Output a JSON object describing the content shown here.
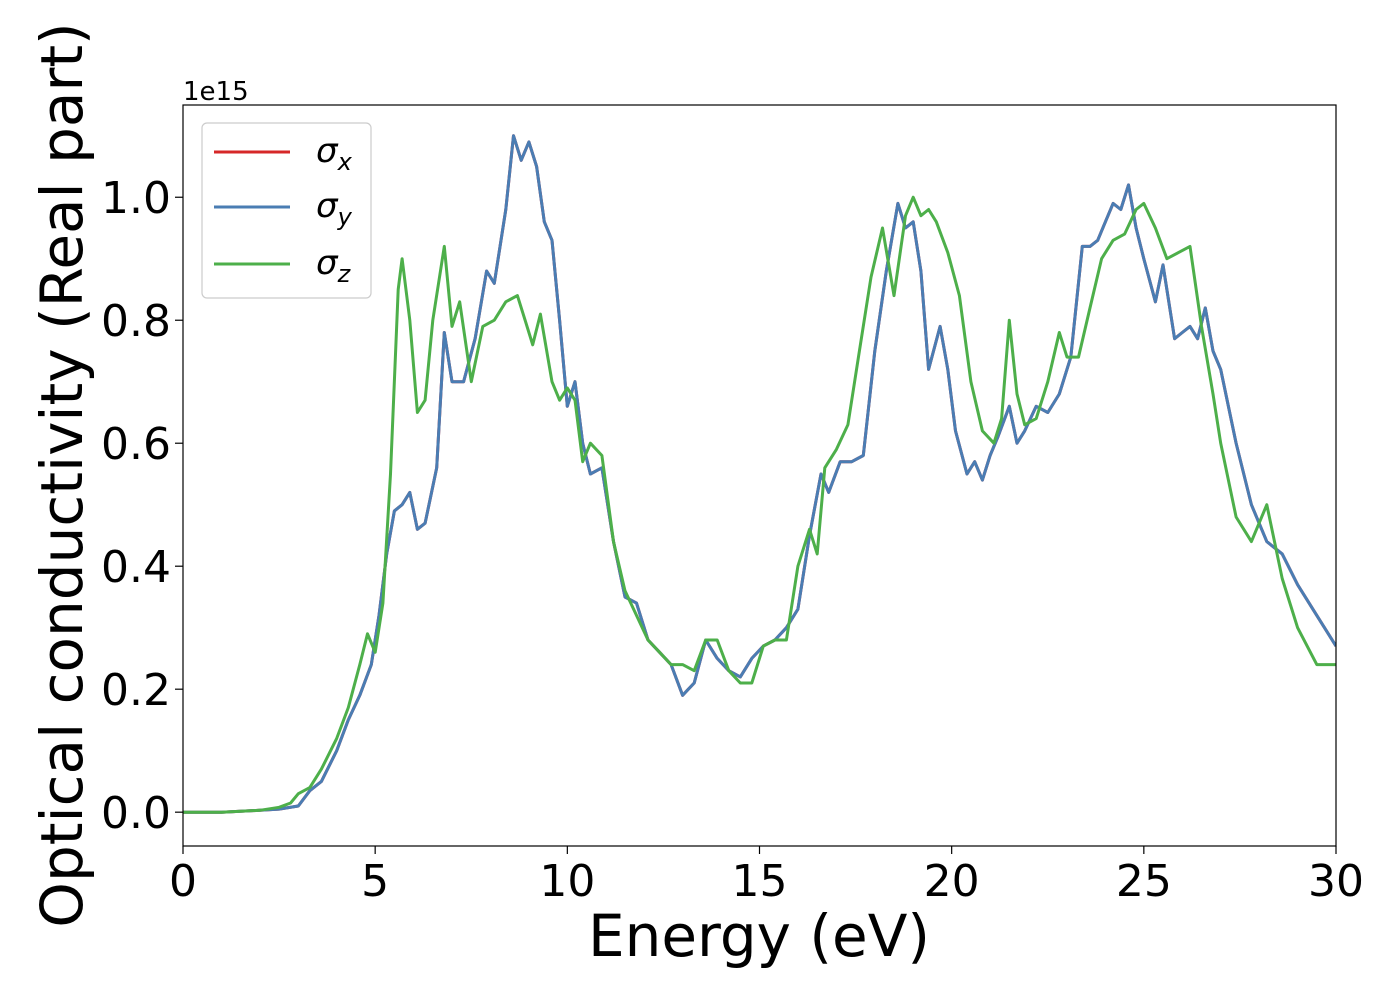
{
  "chart_data": {
    "type": "line",
    "title": "",
    "xlabel": "Energy (eV)",
    "ylabel": "Optical conductivity (Real part)",
    "offset_text": "1e15",
    "xlim": [
      0,
      30
    ],
    "ylim": [
      -0.055,
      1.15
    ],
    "xticks": [
      0,
      5,
      10,
      15,
      20,
      25,
      30
    ],
    "xtick_labels": [
      "0",
      "5",
      "10",
      "15",
      "20",
      "25",
      "30"
    ],
    "yticks": [
      0.0,
      0.2,
      0.4,
      0.6,
      0.8,
      1.0
    ],
    "ytick_labels": [
      "0.0",
      "0.2",
      "0.4",
      "0.6",
      "0.8",
      "1.0"
    ],
    "grid": false,
    "legend_position": "upper-left",
    "series": [
      {
        "name": "σ_x",
        "color": "#d62728",
        "x": [
          0,
          1,
          2,
          2.5,
          3,
          3.3,
          3.6,
          4,
          4.3,
          4.6,
          4.9,
          5.1,
          5.3,
          5.5,
          5.7,
          5.9,
          6.1,
          6.3,
          6.6,
          6.8,
          7.0,
          7.3,
          7.6,
          7.9,
          8.1,
          8.4,
          8.6,
          8.8,
          9.0,
          9.2,
          9.4,
          9.6,
          9.8,
          10.0,
          10.2,
          10.4,
          10.6,
          10.9,
          11.2,
          11.5,
          11.8,
          12.1,
          12.4,
          12.7,
          13.0,
          13.3,
          13.6,
          13.9,
          14.2,
          14.5,
          14.8,
          15.1,
          15.4,
          15.7,
          16.0,
          16.3,
          16.6,
          16.8,
          17.1,
          17.4,
          17.7,
          18.0,
          18.3,
          18.6,
          18.8,
          19.0,
          19.2,
          19.4,
          19.7,
          19.9,
          20.1,
          20.4,
          20.6,
          20.8,
          21.0,
          21.2,
          21.5,
          21.7,
          21.9,
          22.2,
          22.5,
          22.8,
          23.1,
          23.4,
          23.6,
          23.8,
          24.0,
          24.2,
          24.4,
          24.6,
          24.8,
          25.0,
          25.3,
          25.5,
          25.8,
          26.0,
          26.2,
          26.4,
          26.6,
          26.8,
          27.0,
          27.4,
          27.8,
          28.2,
          28.6,
          29.0,
          29.5,
          30.0
        ],
        "y": [
          0,
          0,
          0.003,
          0.005,
          0.01,
          0.035,
          0.05,
          0.1,
          0.15,
          0.19,
          0.24,
          0.32,
          0.42,
          0.49,
          0.5,
          0.52,
          0.46,
          0.47,
          0.56,
          0.78,
          0.7,
          0.7,
          0.77,
          0.88,
          0.86,
          0.98,
          1.1,
          1.06,
          1.09,
          1.05,
          0.96,
          0.93,
          0.8,
          0.66,
          0.7,
          0.6,
          0.55,
          0.56,
          0.44,
          0.35,
          0.34,
          0.28,
          0.26,
          0.24,
          0.19,
          0.21,
          0.28,
          0.25,
          0.23,
          0.22,
          0.25,
          0.27,
          0.28,
          0.3,
          0.33,
          0.45,
          0.55,
          0.52,
          0.57,
          0.57,
          0.58,
          0.75,
          0.88,
          0.99,
          0.95,
          0.96,
          0.88,
          0.72,
          0.79,
          0.72,
          0.62,
          0.55,
          0.57,
          0.54,
          0.58,
          0.61,
          0.66,
          0.6,
          0.62,
          0.66,
          0.65,
          0.68,
          0.74,
          0.92,
          0.92,
          0.93,
          0.96,
          0.99,
          0.98,
          1.02,
          0.95,
          0.9,
          0.83,
          0.89,
          0.77,
          0.78,
          0.79,
          0.77,
          0.82,
          0.75,
          0.72,
          0.6,
          0.5,
          0.44,
          0.42,
          0.37,
          0.32,
          0.27
        ]
      },
      {
        "name": "σ_y",
        "color": "#4a7db3",
        "x": [
          0,
          1,
          2,
          2.5,
          3,
          3.3,
          3.6,
          4,
          4.3,
          4.6,
          4.9,
          5.1,
          5.3,
          5.5,
          5.7,
          5.9,
          6.1,
          6.3,
          6.6,
          6.8,
          7.0,
          7.3,
          7.6,
          7.9,
          8.1,
          8.4,
          8.6,
          8.8,
          9.0,
          9.2,
          9.4,
          9.6,
          9.8,
          10.0,
          10.2,
          10.4,
          10.6,
          10.9,
          11.2,
          11.5,
          11.8,
          12.1,
          12.4,
          12.7,
          13.0,
          13.3,
          13.6,
          13.9,
          14.2,
          14.5,
          14.8,
          15.1,
          15.4,
          15.7,
          16.0,
          16.3,
          16.6,
          16.8,
          17.1,
          17.4,
          17.7,
          18.0,
          18.3,
          18.6,
          18.8,
          19.0,
          19.2,
          19.4,
          19.7,
          19.9,
          20.1,
          20.4,
          20.6,
          20.8,
          21.0,
          21.2,
          21.5,
          21.7,
          21.9,
          22.2,
          22.5,
          22.8,
          23.1,
          23.4,
          23.6,
          23.8,
          24.0,
          24.2,
          24.4,
          24.6,
          24.8,
          25.0,
          25.3,
          25.5,
          25.8,
          26.0,
          26.2,
          26.4,
          26.6,
          26.8,
          27.0,
          27.4,
          27.8,
          28.2,
          28.6,
          29.0,
          29.5,
          30.0
        ],
        "y": [
          0,
          0,
          0.003,
          0.005,
          0.01,
          0.035,
          0.05,
          0.1,
          0.15,
          0.19,
          0.24,
          0.32,
          0.42,
          0.49,
          0.5,
          0.52,
          0.46,
          0.47,
          0.56,
          0.78,
          0.7,
          0.7,
          0.77,
          0.88,
          0.86,
          0.98,
          1.1,
          1.06,
          1.09,
          1.05,
          0.96,
          0.93,
          0.8,
          0.66,
          0.7,
          0.6,
          0.55,
          0.56,
          0.44,
          0.35,
          0.34,
          0.28,
          0.26,
          0.24,
          0.19,
          0.21,
          0.28,
          0.25,
          0.23,
          0.22,
          0.25,
          0.27,
          0.28,
          0.3,
          0.33,
          0.45,
          0.55,
          0.52,
          0.57,
          0.57,
          0.58,
          0.75,
          0.88,
          0.99,
          0.95,
          0.96,
          0.88,
          0.72,
          0.79,
          0.72,
          0.62,
          0.55,
          0.57,
          0.54,
          0.58,
          0.61,
          0.66,
          0.6,
          0.62,
          0.66,
          0.65,
          0.68,
          0.74,
          0.92,
          0.92,
          0.93,
          0.96,
          0.99,
          0.98,
          1.02,
          0.95,
          0.9,
          0.83,
          0.89,
          0.77,
          0.78,
          0.79,
          0.77,
          0.82,
          0.75,
          0.72,
          0.6,
          0.5,
          0.44,
          0.42,
          0.37,
          0.32,
          0.27
        ]
      },
      {
        "name": "σ_z",
        "color": "#4daf4a",
        "x": [
          0,
          1,
          2,
          2.5,
          2.8,
          3.0,
          3.3,
          3.6,
          4,
          4.3,
          4.6,
          4.8,
          5.0,
          5.2,
          5.4,
          5.6,
          5.7,
          5.9,
          6.1,
          6.3,
          6.5,
          6.8,
          7.0,
          7.2,
          7.5,
          7.8,
          8.1,
          8.4,
          8.7,
          8.9,
          9.1,
          9.3,
          9.6,
          9.8,
          10.0,
          10.2,
          10.4,
          10.6,
          10.9,
          11.2,
          11.5,
          11.8,
          12.1,
          12.4,
          12.7,
          13.0,
          13.3,
          13.6,
          13.9,
          14.2,
          14.5,
          14.8,
          15.1,
          15.4,
          15.7,
          16.0,
          16.3,
          16.5,
          16.7,
          17.0,
          17.3,
          17.6,
          17.9,
          18.2,
          18.5,
          18.8,
          19.0,
          19.2,
          19.4,
          19.6,
          19.9,
          20.2,
          20.5,
          20.8,
          21.1,
          21.3,
          21.5,
          21.7,
          21.9,
          22.2,
          22.5,
          22.8,
          23.0,
          23.3,
          23.6,
          23.9,
          24.2,
          24.5,
          24.8,
          25.0,
          25.3,
          25.6,
          25.9,
          26.2,
          26.5,
          26.8,
          27.0,
          27.4,
          27.8,
          28.2,
          28.6,
          29.0,
          29.5,
          30.0
        ],
        "y": [
          0,
          0,
          0.003,
          0.008,
          0.015,
          0.03,
          0.04,
          0.07,
          0.12,
          0.17,
          0.24,
          0.29,
          0.26,
          0.34,
          0.55,
          0.85,
          0.9,
          0.8,
          0.65,
          0.67,
          0.8,
          0.92,
          0.79,
          0.83,
          0.7,
          0.79,
          0.8,
          0.83,
          0.84,
          0.8,
          0.76,
          0.81,
          0.7,
          0.67,
          0.69,
          0.67,
          0.57,
          0.6,
          0.58,
          0.44,
          0.36,
          0.32,
          0.28,
          0.26,
          0.24,
          0.24,
          0.23,
          0.28,
          0.28,
          0.23,
          0.21,
          0.21,
          0.27,
          0.28,
          0.28,
          0.4,
          0.46,
          0.42,
          0.56,
          0.59,
          0.63,
          0.75,
          0.87,
          0.95,
          0.84,
          0.97,
          1.0,
          0.97,
          0.98,
          0.96,
          0.91,
          0.84,
          0.7,
          0.62,
          0.6,
          0.64,
          0.8,
          0.68,
          0.63,
          0.64,
          0.7,
          0.78,
          0.74,
          0.74,
          0.82,
          0.9,
          0.93,
          0.94,
          0.98,
          0.99,
          0.95,
          0.9,
          0.91,
          0.92,
          0.79,
          0.68,
          0.6,
          0.48,
          0.44,
          0.5,
          0.38,
          0.3,
          0.24,
          0.24
        ]
      }
    ]
  }
}
